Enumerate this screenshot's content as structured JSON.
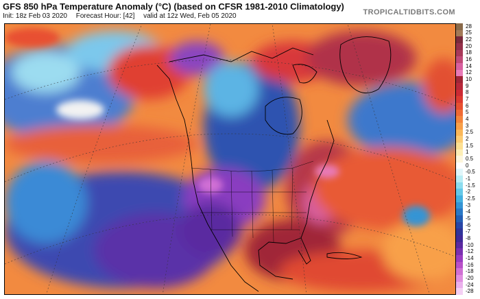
{
  "header": {
    "title": "GFS 850 hPa Temperature Anomaly (°C) (based on CFSR 1981-2010 Climatology)",
    "init": "Init: 18z Feb 03 2020",
    "forecast_hour": "Forecast Hour: [42]",
    "valid": "valid at 12z Wed, Feb 05 2020",
    "brand": "TROPICALTIDBITS.COM"
  },
  "colorbar": {
    "levels": [
      {
        "label": "28",
        "color": "#8a6a4a"
      },
      {
        "label": "25",
        "color": "#a37a58"
      },
      {
        "label": "22",
        "color": "#7a2a3c"
      },
      {
        "label": "20",
        "color": "#94304a"
      },
      {
        "label": "18",
        "color": "#a83a5a"
      },
      {
        "label": "16",
        "color": "#c04a78"
      },
      {
        "label": "14",
        "color": "#d860a0"
      },
      {
        "label": "12",
        "color": "#e87ab8"
      },
      {
        "label": "10",
        "color": "#a02638"
      },
      {
        "label": "9",
        "color": "#b8283a"
      },
      {
        "label": "8",
        "color": "#cc2a34"
      },
      {
        "label": "7",
        "color": "#dc3a30"
      },
      {
        "label": "6",
        "color": "#e85030"
      },
      {
        "label": "5",
        "color": "#f06a34"
      },
      {
        "label": "4",
        "color": "#f4853c"
      },
      {
        "label": "3",
        "color": "#f8a04a"
      },
      {
        "label": "2.5",
        "color": "#fab85a"
      },
      {
        "label": "2",
        "color": "#fccc74"
      },
      {
        "label": "1.5",
        "color": "#fde092"
      },
      {
        "label": "1",
        "color": "#fdeeb6"
      },
      {
        "label": "0.5",
        "color": "#fdf6dc"
      },
      {
        "label": "0",
        "color": "#ffffff"
      },
      {
        "label": "-0.5",
        "color": "#e0f6fa"
      },
      {
        "label": "-1",
        "color": "#b8ecf4"
      },
      {
        "label": "-1.5",
        "color": "#8cdcee"
      },
      {
        "label": "-2",
        "color": "#64c8e8"
      },
      {
        "label": "-2.5",
        "color": "#44b0e0"
      },
      {
        "label": "-3",
        "color": "#3494d4"
      },
      {
        "label": "-4",
        "color": "#2a78c6"
      },
      {
        "label": "-5",
        "color": "#245eb4"
      },
      {
        "label": "-6",
        "color": "#2846a6"
      },
      {
        "label": "-7",
        "color": "#30349a"
      },
      {
        "label": "-8",
        "color": "#402a98"
      },
      {
        "label": "-10",
        "color": "#5a2aa0"
      },
      {
        "label": "-12",
        "color": "#7a30b0"
      },
      {
        "label": "-14",
        "color": "#9a3cc0"
      },
      {
        "label": "-16",
        "color": "#b850c8"
      },
      {
        "label": "-18",
        "color": "#d070d4"
      },
      {
        "label": "-20",
        "color": "#e08ee0"
      },
      {
        "label": "-24",
        "color": "#eab0ec"
      },
      {
        "label": "-28",
        "color": "#f4d0f4"
      }
    ]
  }
}
